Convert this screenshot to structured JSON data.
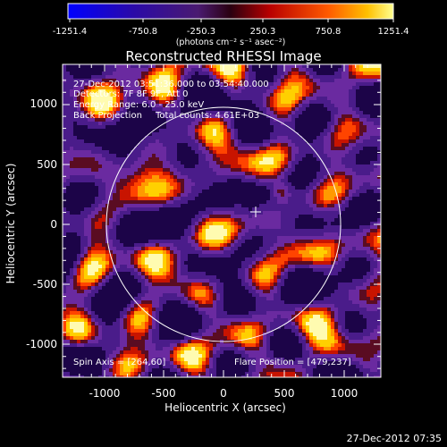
{
  "colorbar": {
    "ticks": [
      "-1251.4",
      "-750.8",
      "-250.3",
      "250.3",
      "750.8",
      "1251.4"
    ],
    "units": "(photons cm⁻² s⁻¹ asec⁻²)",
    "range": [
      -1251.4,
      1251.4
    ]
  },
  "title": "Reconstructed RHESSI Image",
  "info": {
    "time_range": "27-Dec-2012 03:51:36.000 to 03:54:40.000",
    "detectors": "Detectors: 7F 8F 9F, Att 0",
    "energy": "Energy Range: 6.0 - 25.0 keV",
    "method": "Back Projection",
    "counts": "Total counts: 4.61E+03"
  },
  "spin_axis": "Spin Axis = [264,60]",
  "flare_position": "Flare Position = [479,237]",
  "axes": {
    "xlabel": "Heliocentric X (arcsec)",
    "ylabel": "Heliocentric Y (arcsec)",
    "xticks": [
      "-1000",
      "-500",
      "0",
      "500",
      "1000"
    ],
    "yticks": [
      "-1000",
      "-500",
      "0",
      "500",
      "1000"
    ],
    "xlim": [
      -1300,
      1300
    ],
    "ylim": [
      -1300,
      1300
    ]
  },
  "timestamp": "27-Dec-2012 07:35",
  "colors": {
    "background": "#000000",
    "text": "#ffffff",
    "map_low": "#1a0040",
    "map_mid": "#6a28a8",
    "map_high": "#ff2a00",
    "map_peak": "#fff070"
  }
}
